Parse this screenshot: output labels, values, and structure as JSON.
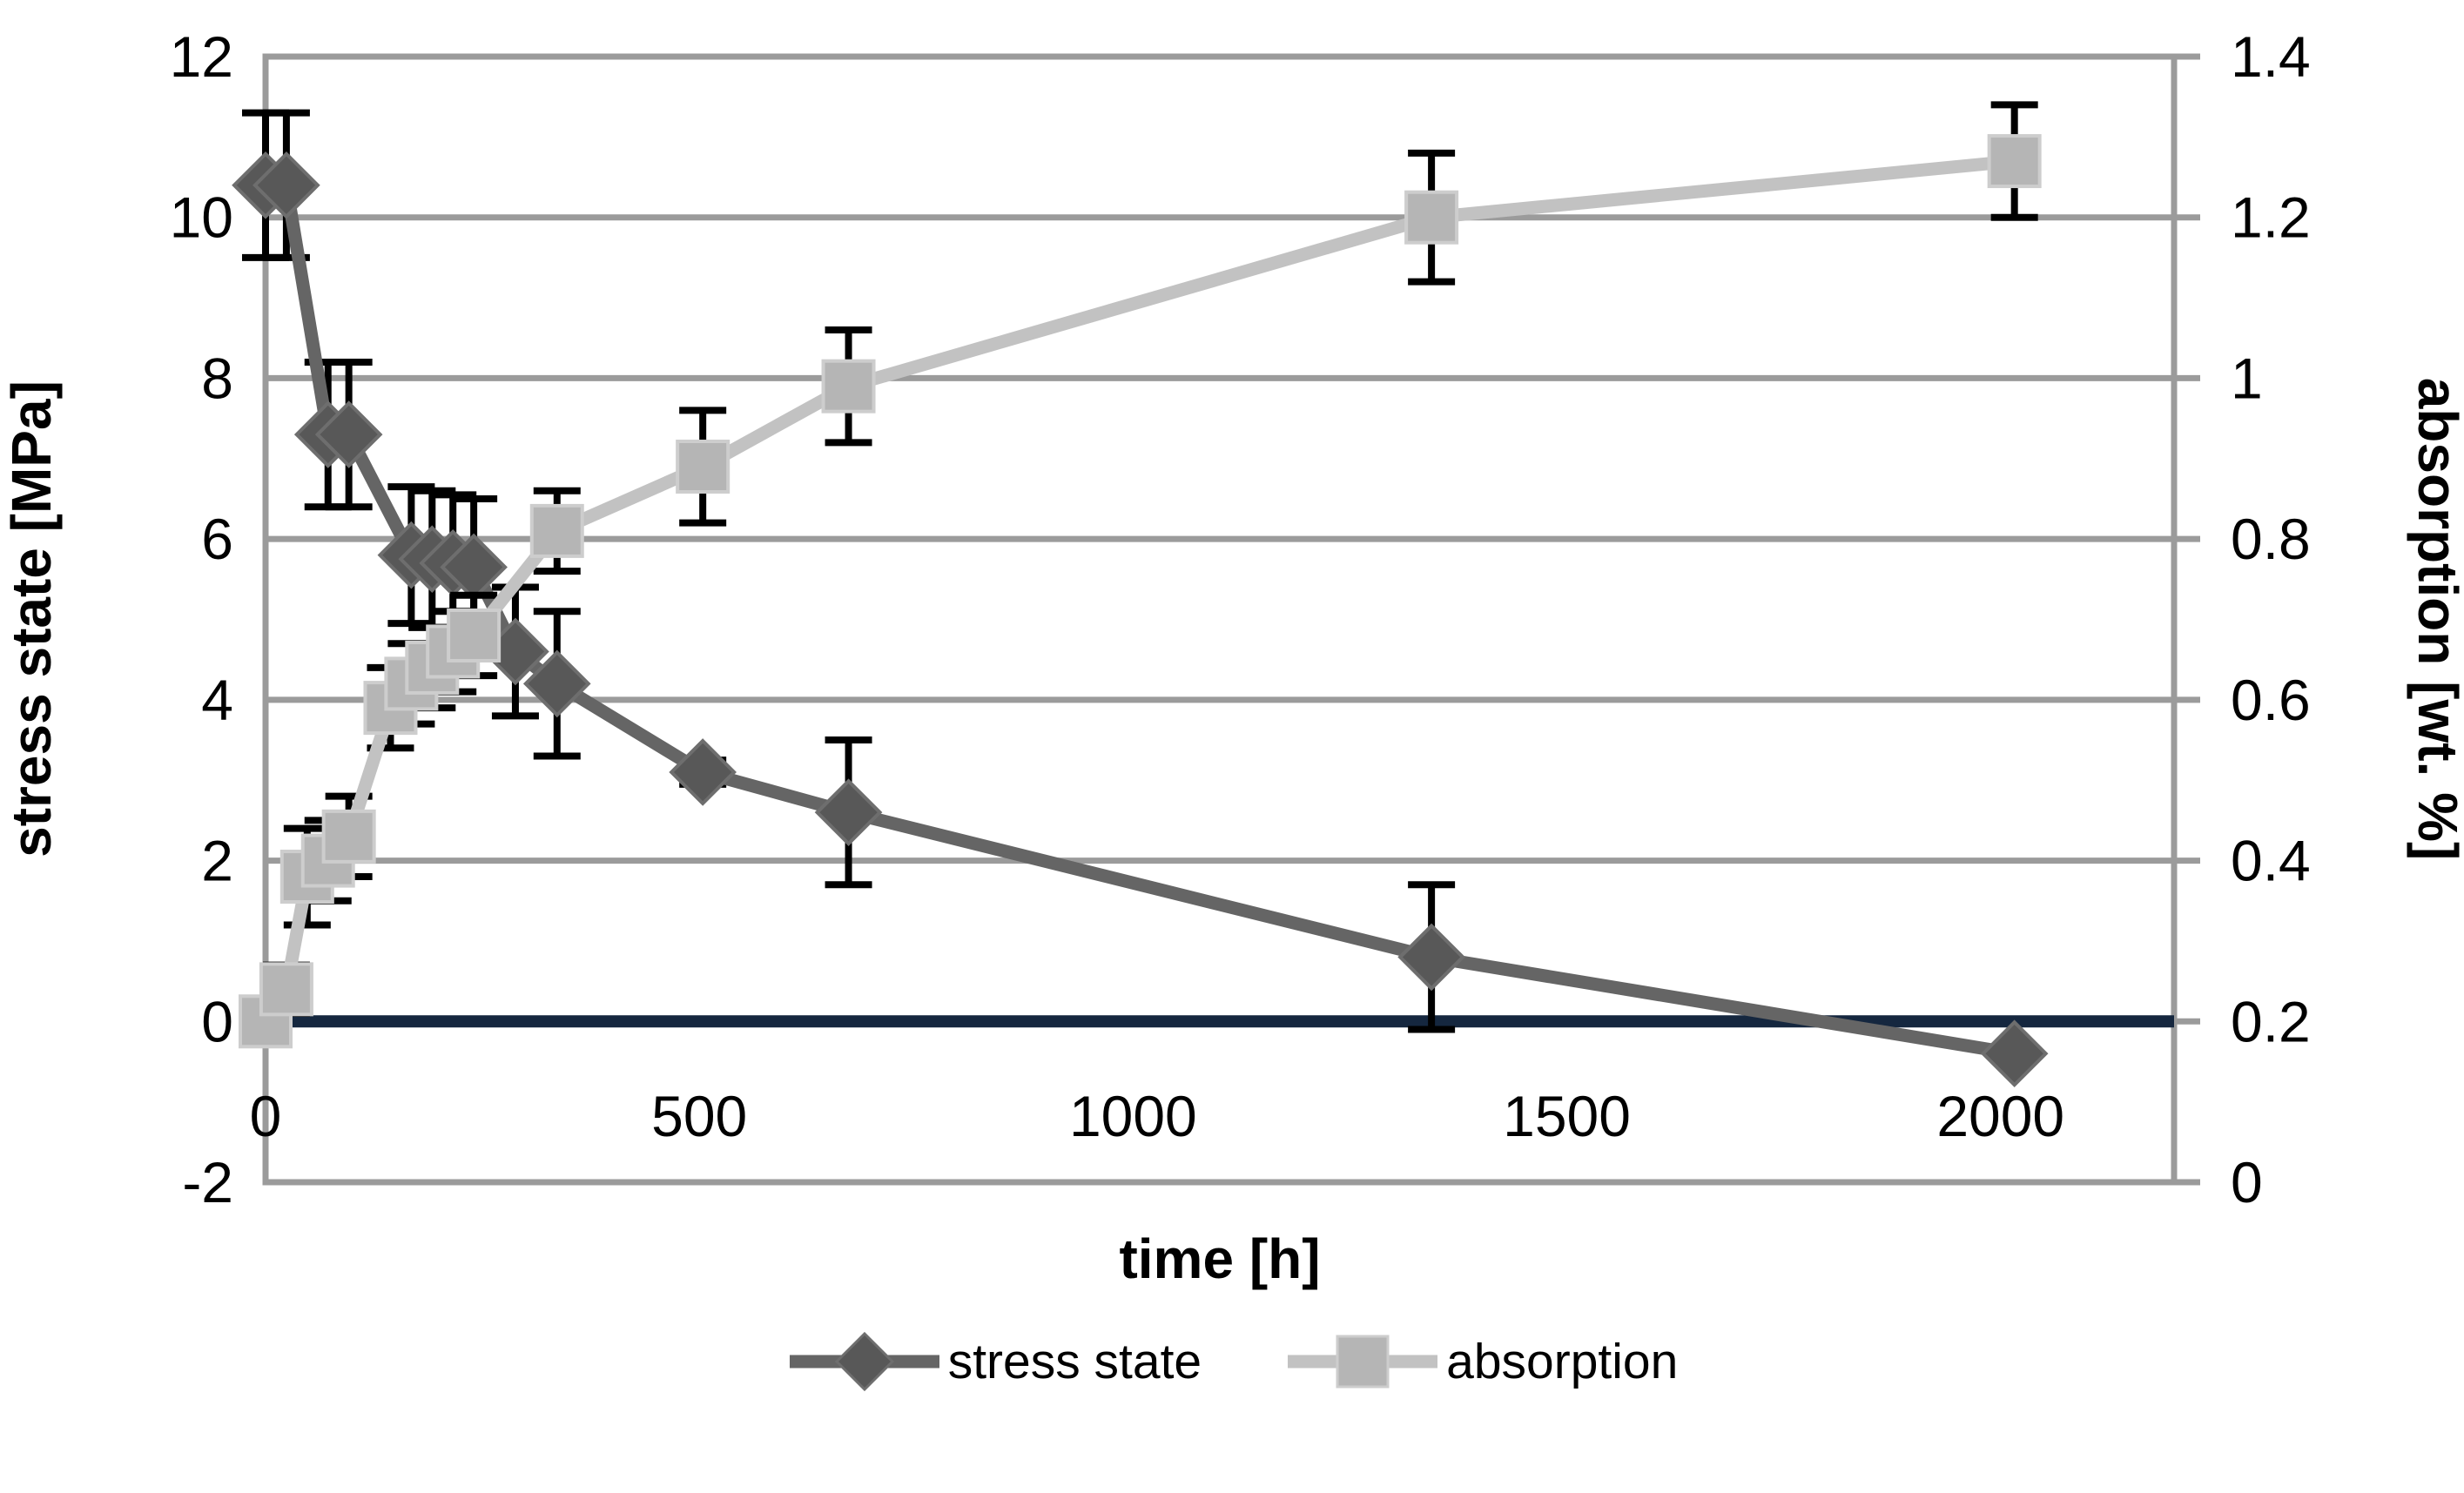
{
  "chart_data": {
    "type": "line",
    "title": "",
    "xlabel": "time [h]",
    "ylabel_left": "stress state [MPa]",
    "ylabel_right": "absorption [wt. %]",
    "grid": true,
    "legend_position": "bottom",
    "x_axis": {
      "min": 0,
      "max": 2200,
      "ticks": [
        "0",
        "500",
        "1000",
        "1500",
        "2000"
      ],
      "tick_values": [
        0,
        500,
        1000,
        1500,
        2000
      ]
    },
    "left_axis": {
      "min": -2,
      "max": 12,
      "ticks": [
        "12",
        "10",
        "8",
        "6",
        "4",
        "2",
        "0",
        "-2"
      ],
      "tick_values": [
        12,
        10,
        8,
        6,
        4,
        2,
        0,
        -2
      ]
    },
    "right_axis": {
      "min": 0,
      "max": 1.4,
      "ticks": [
        "1.4",
        "1.2",
        "1",
        "0.8",
        "0.6",
        "0.4",
        "0.2",
        "0"
      ],
      "tick_values": [
        1.4,
        1.2,
        1,
        0.8,
        0.6,
        0.4,
        0.2,
        0
      ]
    },
    "zero_line": {
      "axis": "left",
      "value": 0,
      "color": "#15273F"
    },
    "colors": {
      "grid": "#9B9B9B",
      "border": "#9B9B9B",
      "error_bar": "#000000",
      "background": "#FFFFFF"
    },
    "series": [
      {
        "name": "stress state",
        "axis": "left",
        "marker": "diamond",
        "line_color": "#656565",
        "marker_color": "#585858",
        "marker_edge": "#6E6E6E",
        "x": [
          0,
          24,
          72,
          96,
          168,
          192,
          216,
          240,
          288,
          336,
          504,
          672,
          1344,
          2016
        ],
        "y": [
          10.4,
          10.4,
          7.3,
          7.3,
          5.8,
          5.75,
          5.7,
          5.65,
          4.6,
          4.2,
          3.1,
          2.6,
          0.8,
          -0.4
        ],
        "err": [
          0.9,
          0.9,
          0.9,
          0.9,
          0.85,
          0.85,
          0.85,
          0.85,
          0.8,
          0.9,
          0.15,
          0.9,
          0.9,
          0
        ]
      },
      {
        "name": "absorption",
        "axis": "right",
        "marker": "square",
        "line_color": "#C2C2C2",
        "marker_color": "#B5B5B5",
        "marker_edge": "#CDCDCD",
        "x": [
          0,
          24,
          48,
          72,
          96,
          144,
          168,
          192,
          216,
          240,
          336,
          504,
          672,
          1344,
          2016
        ],
        "y": [
          0.2,
          0.24,
          0.38,
          0.4,
          0.43,
          0.59,
          0.62,
          0.64,
          0.66,
          0.68,
          0.81,
          0.89,
          0.99,
          1.2,
          1.27
        ],
        "err": [
          0.02,
          0.03,
          0.06,
          0.05,
          0.05,
          0.05,
          0.05,
          0.05,
          0.05,
          0.05,
          0.05,
          0.07,
          0.07,
          0.08,
          0.07
        ]
      }
    ]
  },
  "legend": {
    "items": [
      {
        "label": "stress state"
      },
      {
        "label": "absorption"
      }
    ]
  }
}
